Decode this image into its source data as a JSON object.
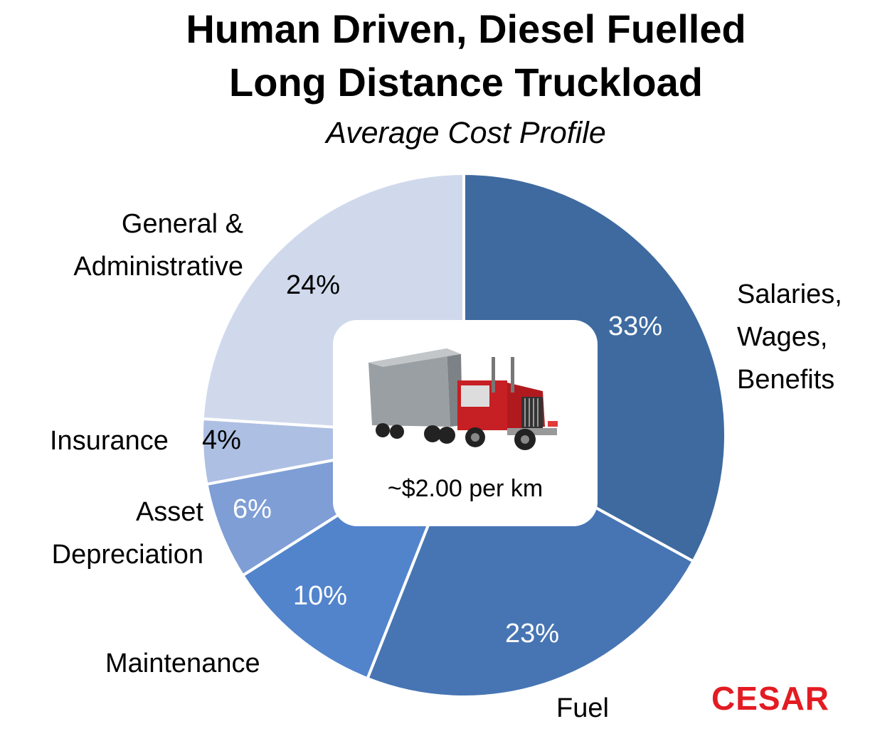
{
  "title_line1": "Human Driven, Diesel Fuelled",
  "title_line2": "Long Distance Truckload",
  "subtitle": "Average Cost Profile",
  "center_text": "~$2.00 per km",
  "logo_text": "CESAR",
  "chart_data": {
    "type": "pie",
    "title": "Human Driven, Diesel Fuelled Long Distance Truckload",
    "subtitle": "Average Cost Profile",
    "slices": [
      {
        "label": "Salaries, Wages, Benefits",
        "value": 33,
        "pct_label": "33%",
        "color": "#3e6aa0"
      },
      {
        "label": "Fuel",
        "value": 23,
        "pct_label": "23%",
        "color": "#4775b3"
      },
      {
        "label": "Maintenance",
        "value": 10,
        "pct_label": "10%",
        "color": "#5284cc"
      },
      {
        "label": "Asset Depreciation",
        "value": 6,
        "pct_label": "6%",
        "color": "#7e9ed5"
      },
      {
        "label": "Insurance",
        "value": 4,
        "pct_label": "4%",
        "color": "#adbfe2"
      },
      {
        "label": "General & Administrative",
        "value": 24,
        "pct_label": "24%",
        "color": "#d0d9ec"
      }
    ]
  },
  "labels": {
    "salaries": [
      "Salaries,",
      "Wages,",
      "Benefits"
    ],
    "fuel": "Fuel",
    "maintenance": "Maintenance",
    "asset": [
      "Asset",
      "Depreciation"
    ],
    "insurance": "Insurance",
    "general": [
      "General &",
      "Administrative"
    ]
  },
  "icons": {
    "center": "truck-icon",
    "logo": "cesar-logo"
  }
}
